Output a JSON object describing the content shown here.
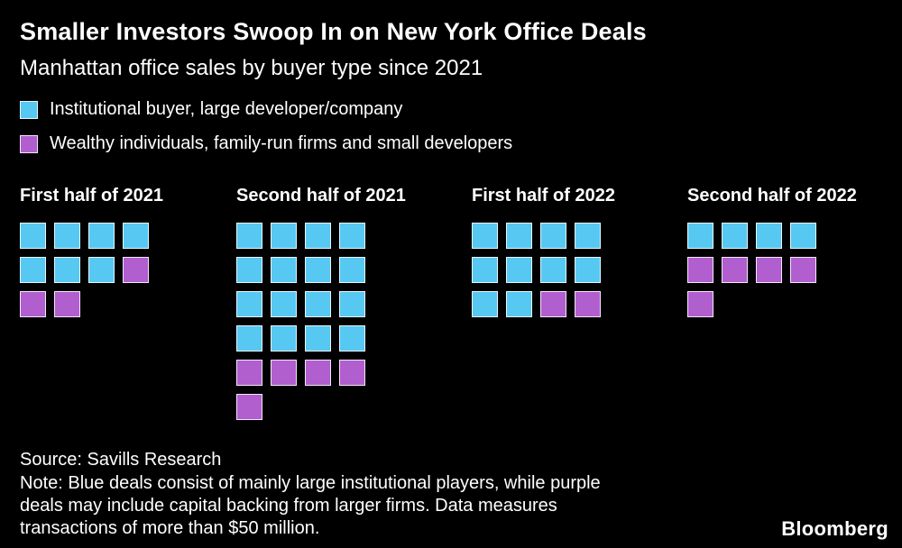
{
  "header": {
    "title": "Smaller Investors Swoop In on New York Office Deals",
    "subtitle": "Manhattan office sales by buyer type since 2021"
  },
  "legend": {
    "items": [
      {
        "key": "institutional",
        "label": "Institutional buyer, large developer/company",
        "color": "#57c8f2"
      },
      {
        "key": "wealthy",
        "label": "Wealthy individuals, family-run firms and small developers",
        "color": "#b15ecf"
      }
    ]
  },
  "chart_data": {
    "type": "waffle",
    "title": "Smaller Investors Swoop In on New York Office Deals",
    "subtitle": "Manhattan office sales by buyer type since 2021",
    "columns_per_row": 4,
    "legend_position": "top-left",
    "colors": {
      "b": "#57c8f2",
      "p": "#b15ecf"
    },
    "series_names": {
      "b": "Institutional buyer, large developer/company",
      "p": "Wealthy individuals, family-run firms and small developers"
    },
    "groups": [
      {
        "label": "First half of 2021",
        "counts": {
          "institutional": 7,
          "wealthy": 3
        },
        "total": 10,
        "cells": [
          "b",
          "b",
          "b",
          "b",
          "b",
          "b",
          "b",
          "p",
          "p",
          "p"
        ]
      },
      {
        "label": "Second half of 2021",
        "counts": {
          "institutional": 16,
          "wealthy": 5
        },
        "total": 21,
        "cells": [
          "b",
          "b",
          "b",
          "b",
          "b",
          "b",
          "b",
          "b",
          "b",
          "b",
          "b",
          "b",
          "b",
          "b",
          "b",
          "b",
          "p",
          "p",
          "p",
          "p",
          "p"
        ]
      },
      {
        "label": "First half of 2022",
        "counts": {
          "institutional": 10,
          "wealthy": 2
        },
        "total": 12,
        "cells": [
          "b",
          "b",
          "b",
          "b",
          "b",
          "b",
          "b",
          "b",
          "b",
          "b",
          "p",
          "p"
        ]
      },
      {
        "label": "Second half of 2022",
        "counts": {
          "institutional": 4,
          "wealthy": 5
        },
        "total": 9,
        "cells": [
          "b",
          "b",
          "b",
          "b",
          "p",
          "p",
          "p",
          "p",
          "p"
        ]
      }
    ]
  },
  "footer": {
    "source": "Source: Savills Research",
    "note_lines": [
      "Note: Blue deals consist of mainly large institutional players, while purple",
      "deals may include capital backing from larger firms. Data measures",
      "transactions of more than $50 million."
    ],
    "brand": "Bloomberg"
  }
}
